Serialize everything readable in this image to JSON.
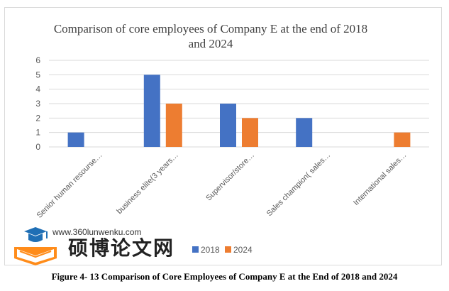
{
  "chart_data": {
    "type": "bar",
    "title_lines": [
      "Comparison of core employees of Company E at the end of 2018",
      "and 2024"
    ],
    "categories": [
      "Senior human resourse…",
      "business elite(3 years…",
      "Supervisor/store…",
      "Sales champion( sales…",
      "International sales…"
    ],
    "series": [
      {
        "name": "2018",
        "values": [
          1,
          5,
          3,
          2,
          0
        ],
        "color": "#4472c4"
      },
      {
        "name": "2024",
        "values": [
          0,
          3,
          2,
          0,
          1
        ],
        "color": "#ed7d31"
      }
    ],
    "y_ticks": [
      "0",
      "1",
      "2",
      "3",
      "4",
      "5",
      "6"
    ],
    "ylim": [
      0,
      6
    ],
    "grid": true,
    "legend_position": "bottom"
  },
  "watermark": {
    "url": "www.360lunwenku.com",
    "name": "硕博论文网"
  },
  "caption": "Figure 4- 13 Comparison of Core Employees of Company E at the End of 2018 and 2024"
}
